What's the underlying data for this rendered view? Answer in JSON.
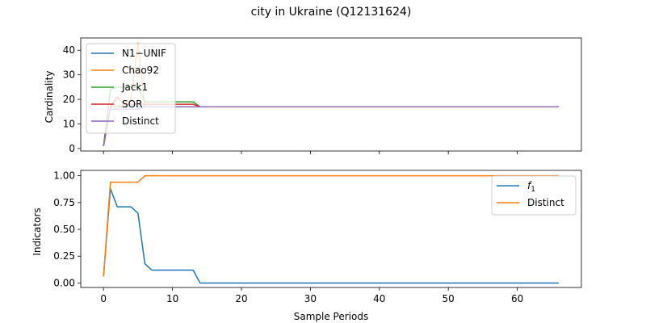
{
  "chart_data": [
    {
      "type": "line",
      "title": "city in Ukraine (Q12131624)",
      "xlabel": "",
      "ylabel": "Cardinality",
      "xlim": [
        -3.3,
        69.3
      ],
      "ylim": [
        -1,
        45
      ],
      "xticks": [
        0,
        10,
        20,
        30,
        40,
        50,
        60
      ],
      "yticks": [
        0,
        10,
        20,
        30,
        40
      ],
      "legend_position": "upper-left",
      "series": [
        {
          "name": "N1−UNIF",
          "color": "#1f77b4",
          "points": [
            [
              0,
              1
            ],
            [
              1,
              17
            ],
            [
              66,
              17
            ]
          ]
        },
        {
          "name": "Chao92",
          "color": "#ff7f0e",
          "points": [
            [
              0,
              1
            ],
            [
              1,
              17
            ],
            [
              2,
              17
            ],
            [
              3,
              18
            ],
            [
              4,
              20
            ],
            [
              5,
              43
            ],
            [
              6,
              17
            ],
            [
              7,
              17
            ],
            [
              66,
              17
            ]
          ]
        },
        {
          "name": "Jack1",
          "color": "#2ca02c",
          "points": [
            [
              0,
              1
            ],
            [
              1,
              24
            ],
            [
              2,
              25
            ],
            [
              3,
              25
            ],
            [
              4,
              25
            ],
            [
              5,
              25
            ],
            [
              6,
              19
            ],
            [
              7,
              19
            ],
            [
              13,
              19
            ],
            [
              14,
              17
            ],
            [
              66,
              17
            ]
          ]
        },
        {
          "name": "SOR",
          "color": "#d62728",
          "points": [
            [
              0,
              1
            ],
            [
              1,
              17
            ],
            [
              2,
              21
            ],
            [
              3,
              18
            ],
            [
              4,
              18
            ],
            [
              5,
              18
            ],
            [
              6,
              18
            ],
            [
              7,
              18
            ],
            [
              13,
              18
            ],
            [
              14,
              17
            ],
            [
              66,
              17
            ]
          ]
        },
        {
          "name": "Distinct",
          "color": "#9467bd",
          "points": [
            [
              0,
              1
            ],
            [
              1,
              16
            ],
            [
              2,
              16
            ],
            [
              3,
              16
            ],
            [
              4,
              16
            ],
            [
              5,
              16
            ],
            [
              6,
              17
            ],
            [
              66,
              17
            ]
          ]
        }
      ]
    },
    {
      "type": "line",
      "xlabel": "Sample Periods",
      "ylabel": "Indicators",
      "xlim": [
        -3.3,
        69.3
      ],
      "ylim": [
        -0.0418,
        1.05
      ],
      "xticks": [
        0,
        10,
        20,
        30,
        40,
        50,
        60
      ],
      "yticks": [
        0.0,
        0.25,
        0.5,
        0.75,
        1.0
      ],
      "ytick_labels": [
        "0.00",
        "0.25",
        "0.50",
        "0.75",
        "1.00"
      ],
      "legend_position": "upper-right",
      "series": [
        {
          "name": "f1",
          "color": "#1f77b4",
          "points": [
            [
              0,
              0.06
            ],
            [
              1,
              0.88
            ],
            [
              2,
              0.71
            ],
            [
              3,
              0.71
            ],
            [
              4,
              0.71
            ],
            [
              5,
              0.65
            ],
            [
              6,
              0.18
            ],
            [
              7,
              0.12
            ],
            [
              13,
              0.12
            ],
            [
              14,
              0.0
            ],
            [
              66,
              0.0
            ]
          ]
        },
        {
          "name": "Distinct",
          "color": "#ff7f0e",
          "points": [
            [
              0,
              0.06
            ],
            [
              1,
              0.94
            ],
            [
              2,
              0.94
            ],
            [
              3,
              0.94
            ],
            [
              4,
              0.94
            ],
            [
              5,
              0.94
            ],
            [
              6,
              1.0
            ],
            [
              66,
              1.0
            ]
          ]
        }
      ]
    }
  ]
}
